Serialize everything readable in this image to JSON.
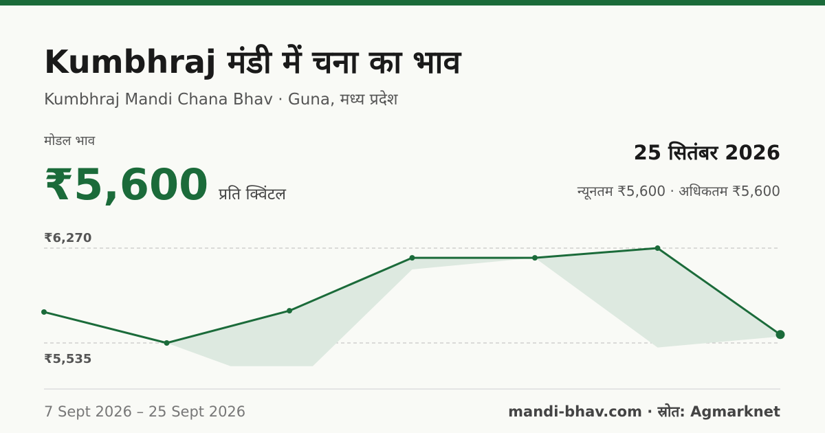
{
  "header": {
    "title": "Kumbhraj मंडी में चना का भाव",
    "subtitle": "Kumbhraj Mandi Chana Bhav · Guna, मध्य प्रदेश"
  },
  "price": {
    "label": "मोडल भाव",
    "value": "₹5,600",
    "unit": "प्रति क्विंटल",
    "date": "25 सितंबर 2026",
    "range": "न्यूनतम ₹5,600 · अधिकतम ₹5,600"
  },
  "chart_data": {
    "type": "line",
    "series": [
      {
        "color": "#1b6b3a",
        "values": [
          5775,
          5535,
          5785,
          6195,
          6195,
          6270,
          5600
        ]
      }
    ],
    "band": {
      "color": "#dde9e0",
      "x": [
        1,
        1.52,
        2.19,
        3,
        4,
        5,
        6
      ],
      "values": [
        5535,
        5355,
        5355,
        6105,
        6195,
        5500,
        5585
      ]
    },
    "ylim": [
      5194,
      6462
    ],
    "yticks": [
      {
        "value": 5535,
        "label": "₹5,535"
      },
      {
        "value": 6270,
        "label": "₹6,270"
      }
    ],
    "grid": true
  },
  "footer": {
    "range": "7 Sept 2026 – 25 Sept 2026",
    "source": "mandi-bhav.com · स्रोत: Agmarknet"
  }
}
